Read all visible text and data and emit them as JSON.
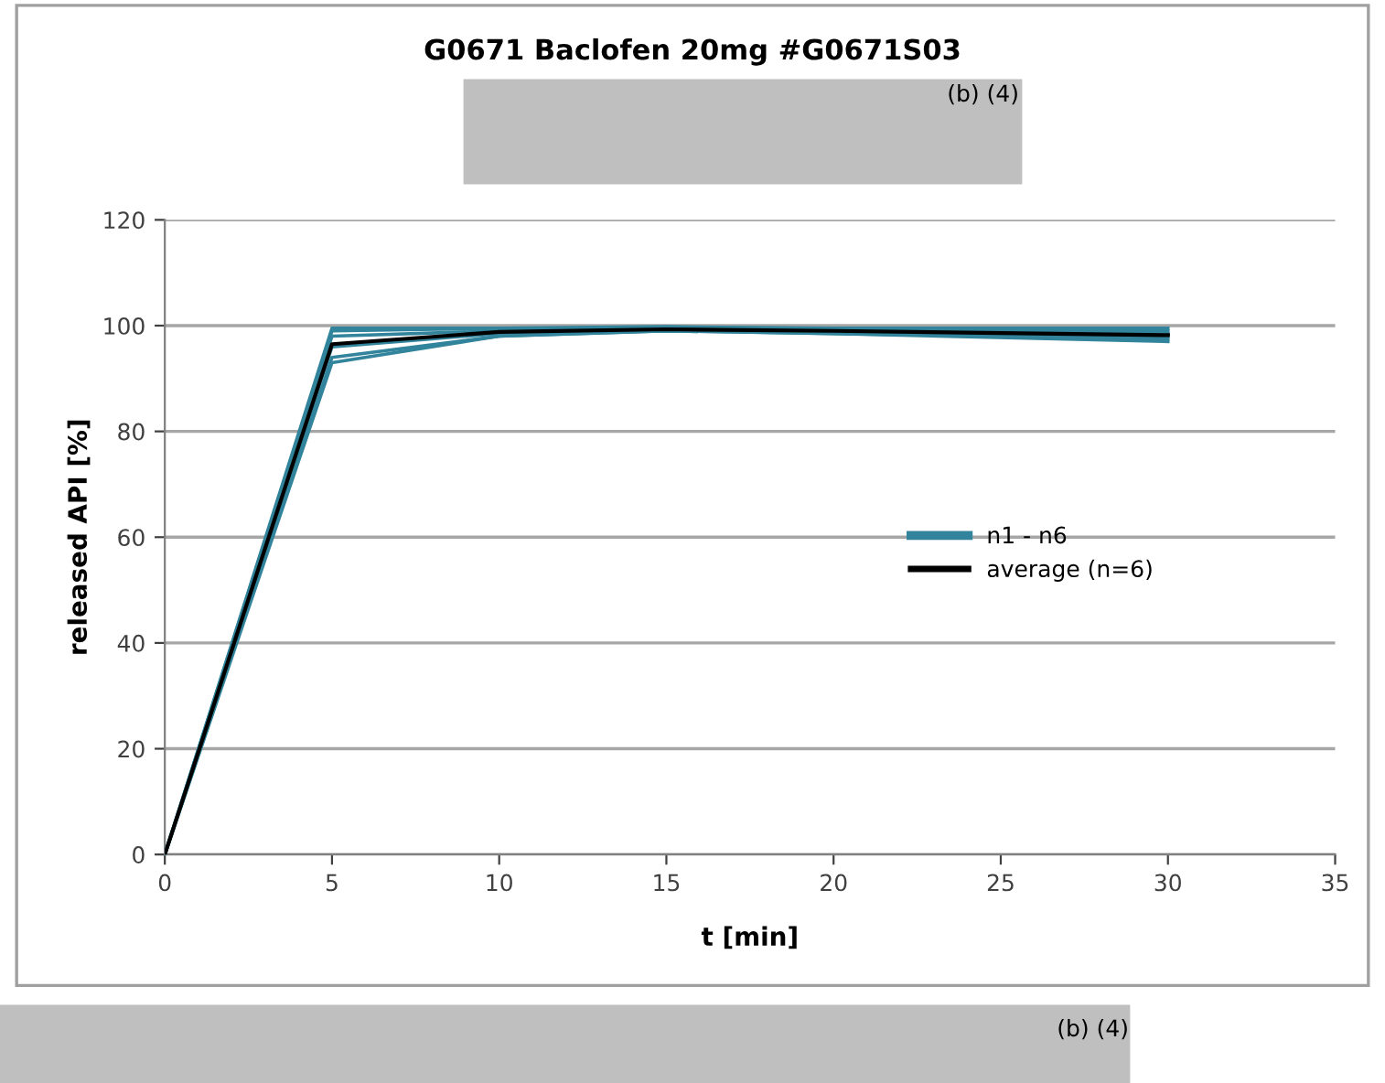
{
  "chart_data": {
    "type": "line",
    "title": "G0671 Baclofen 20mg #G0671S03",
    "xlabel": "t [min]",
    "ylabel": "released API [%]",
    "x": [
      0,
      5,
      10,
      15,
      20,
      30
    ],
    "series": [
      {
        "name": "n1 - n6",
        "color": "#31849b",
        "values": [
          0,
          99.5,
          99.5,
          99.8,
          99.5,
          99.5
        ]
      },
      {
        "color": "#31849b",
        "values": [
          0,
          99,
          99.5,
          99.5,
          99,
          99
        ]
      },
      {
        "color": "#31849b",
        "values": [
          0,
          98,
          99,
          99.5,
          99,
          98.5
        ]
      },
      {
        "color": "#31849b",
        "values": [
          0,
          96,
          98.5,
          99,
          99,
          98
        ]
      },
      {
        "color": "#31849b",
        "values": [
          0,
          94,
          98,
          99,
          98.5,
          97.5
        ]
      },
      {
        "color": "#31849b",
        "values": [
          0,
          93,
          98,
          99,
          98.5,
          97
        ]
      },
      {
        "name": "average (n=6)",
        "color": "#000000",
        "values": [
          0,
          96.5,
          98.8,
          99.3,
          99,
          98.2
        ]
      }
    ],
    "xlim": [
      0,
      35
    ],
    "xticks": [
      0,
      5,
      10,
      15,
      20,
      25,
      30,
      35
    ],
    "ylim": [
      0,
      120
    ],
    "yticks": [
      0,
      20,
      40,
      60,
      80,
      100,
      120
    ],
    "grid": "y",
    "legend": "right",
    "marker": "none",
    "line_style": "solid",
    "annotations": [
      "(b) (4)",
      "(b) (4)"
    ]
  }
}
